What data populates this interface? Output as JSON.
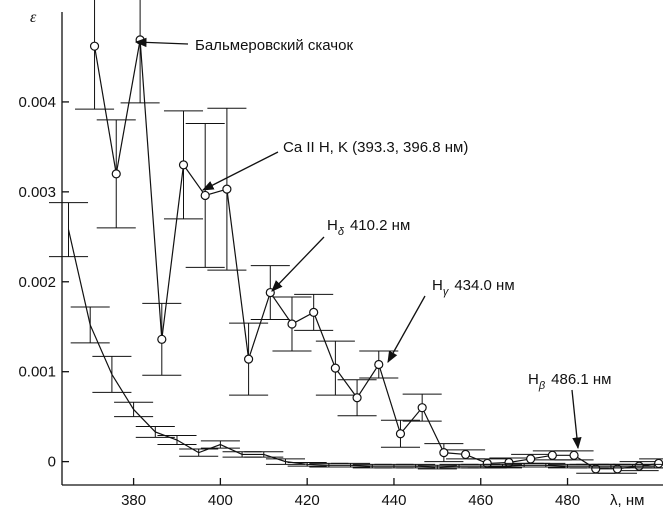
{
  "chart_data": {
    "type": "errorbar-line",
    "y_label": "ε",
    "x_label": "λ, нм",
    "xlim": [
      363.5,
      502
    ],
    "xticks": [
      380,
      400,
      420,
      440,
      460,
      480
    ],
    "ylim": [
      -0.00026,
      0.005
    ],
    "yticks": [
      0,
      0.001,
      0.002,
      0.003,
      0.004
    ],
    "series": [
      {
        "color": "#111111",
        "marker": "circle",
        "x": [
          371,
          376,
          381.5,
          386.5,
          391.5,
          396.5,
          401.5,
          406.5,
          411.5,
          416.5,
          421.5,
          426.5,
          431.5,
          436.5,
          441.5,
          446.5,
          451.5,
          456.5,
          461.5,
          466.5,
          471.5,
          476.5,
          481.5,
          486.5,
          491.5,
          496.5,
          501
        ],
        "values": [
          0.00462,
          0.0032,
          0.00469,
          0.00136,
          0.0033,
          0.00296,
          0.00303,
          0.00114,
          0.00188,
          0.00153,
          0.00166,
          0.00104,
          0.00071,
          0.00108,
          0.00031,
          0.0006,
          0.0001,
          8e-05,
          -2e-05,
          -1e-05,
          3e-05,
          7e-05,
          7e-05,
          -8e-05,
          -8e-05,
          -5e-05,
          -2e-05
        ],
        "errors": [
          0.0007,
          0.0006,
          0.0007,
          0.0004,
          0.0006,
          0.0008,
          0.0009,
          0.0004,
          0.0003,
          0.0003,
          0.0002,
          0.0003,
          0.0002,
          0.00015,
          0.00015,
          0.00015,
          0.0001,
          5e-05,
          5e-05,
          5e-05,
          5e-05,
          5e-05,
          5e-05,
          5e-05,
          5e-05,
          5e-05,
          5e-05
        ]
      },
      {
        "color": "#111111",
        "marker": "none",
        "x": [
          365,
          370,
          375,
          380,
          385,
          390,
          395,
          400,
          405,
          410,
          415,
          420,
          425,
          430,
          435,
          440,
          445,
          450,
          455,
          460,
          465,
          470,
          475,
          480,
          485,
          490,
          495,
          500
        ],
        "values": [
          0.00258,
          0.00152,
          0.00097,
          0.00058,
          0.00033,
          0.00024,
          0.0001,
          0.00019,
          8e-05,
          8e-05,
          0,
          -3e-05,
          -4e-05,
          -4e-05,
          -5e-05,
          -5e-05,
          -5e-05,
          -6e-05,
          -5e-05,
          -5e-05,
          -5e-05,
          -4e-05,
          -4e-05,
          -5e-05,
          -5e-05,
          -5e-05,
          -5e-05,
          -5e-05
        ],
        "errors": [
          0.0003,
          0.0002,
          0.0002,
          8e-05,
          6e-05,
          5e-05,
          4e-05,
          4e-05,
          3e-05,
          3e-05,
          3e-05,
          2e-05,
          2e-05,
          2e-05,
          2e-05,
          2e-05,
          2e-05,
          2e-05,
          2e-05,
          2e-05,
          2e-05,
          2e-05,
          2e-05,
          2e-05,
          2e-05,
          2e-05,
          2e-05,
          2e-05
        ]
      }
    ],
    "annotations": [
      {
        "text": "Бальмеровский скачок"
      },
      {
        "text": "Ca II H, K (393.3, 396.8 нм)"
      },
      {
        "base": "H",
        "sub": "δ",
        "text": "410.2 нм"
      },
      {
        "base": "H",
        "sub": "γ",
        "text": "434.0 нм"
      },
      {
        "base": "H",
        "sub": "β",
        "text": "486.1 нм"
      }
    ]
  }
}
